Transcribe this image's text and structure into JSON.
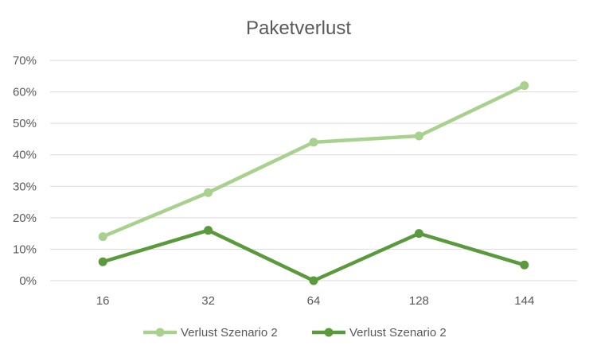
{
  "chart_data": {
    "type": "line",
    "title": "Paketverlust",
    "categories": [
      "16",
      "32",
      "64",
      "128",
      "144"
    ],
    "y_ticks": [
      "0%",
      "10%",
      "20%",
      "30%",
      "40%",
      "50%",
      "60%",
      "70%"
    ],
    "ylim": [
      0,
      70
    ],
    "grid": true,
    "legend_position": "bottom",
    "series": [
      {
        "name": "Verlust Szenario 2",
        "values": [
          14,
          28,
          44,
          46,
          62
        ],
        "color": "#a9d18e"
      },
      {
        "name": "Verlust Szenario 2",
        "values": [
          6,
          16,
          0,
          15,
          5
        ],
        "color": "#5a9a3c"
      }
    ],
    "gridline_color": "#d9d9d9",
    "text_color": "#595959"
  }
}
